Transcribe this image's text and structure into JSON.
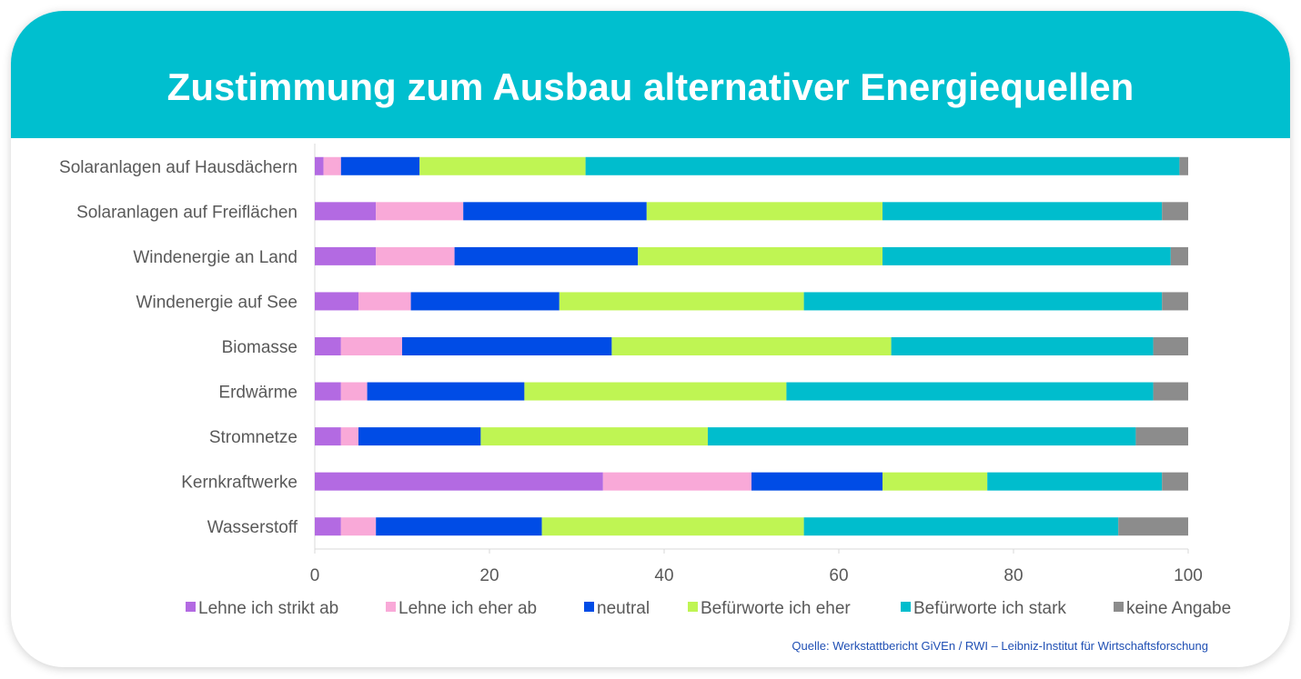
{
  "title": "Zustimmung zum Ausbau alternativer Energiequellen",
  "source": "Quelle: Werkstattbericht GiVEn / RWI – Leibniz-Institut für Wirtschaftsforschung",
  "colors": {
    "banner": "#00bfcf",
    "text": "#595959",
    "source": "#1f4fb4"
  },
  "chart_data": {
    "type": "bar",
    "orientation": "horizontal",
    "stacked": true,
    "categories": [
      "Solaranlagen auf Hausdächern",
      "Solaranlagen auf Freiflächen",
      "Windenergie an Land",
      "Windenergie auf See",
      "Biomasse",
      "Erdwärme",
      "Stromnetze",
      "Kernkraftwerke",
      "Wasserstoff"
    ],
    "series": [
      {
        "name": "Lehne ich strikt ab",
        "color": "#b36ae2",
        "values": [
          1,
          7,
          7,
          5,
          3,
          3,
          3,
          33,
          3
        ]
      },
      {
        "name": "Lehne ich eher ab",
        "color": "#f9a9d8",
        "values": [
          2,
          10,
          9,
          6,
          7,
          3,
          2,
          17,
          4
        ]
      },
      {
        "name": "neutral",
        "color": "#004ce6",
        "values": [
          9,
          21,
          21,
          17,
          24,
          18,
          14,
          15,
          19
        ]
      },
      {
        "name": "Befürworte ich eher",
        "color": "#bff553",
        "values": [
          19,
          27,
          28,
          28,
          32,
          30,
          26,
          12,
          30
        ]
      },
      {
        "name": "Befürworte ich stark",
        "color": "#00bdcd",
        "values": [
          68,
          32,
          33,
          41,
          30,
          42,
          49,
          20,
          36
        ]
      },
      {
        "name": "keine Angabe",
        "color": "#8c8c8c",
        "values": [
          1,
          3,
          2,
          3,
          4,
          4,
          6,
          3,
          8
        ]
      }
    ],
    "xlim": [
      0,
      100
    ],
    "xticks": [
      "0",
      "20",
      "40",
      "60",
      "80",
      "100"
    ],
    "xlabel": "",
    "ylabel": "",
    "grid": false,
    "legend_position": "bottom"
  }
}
